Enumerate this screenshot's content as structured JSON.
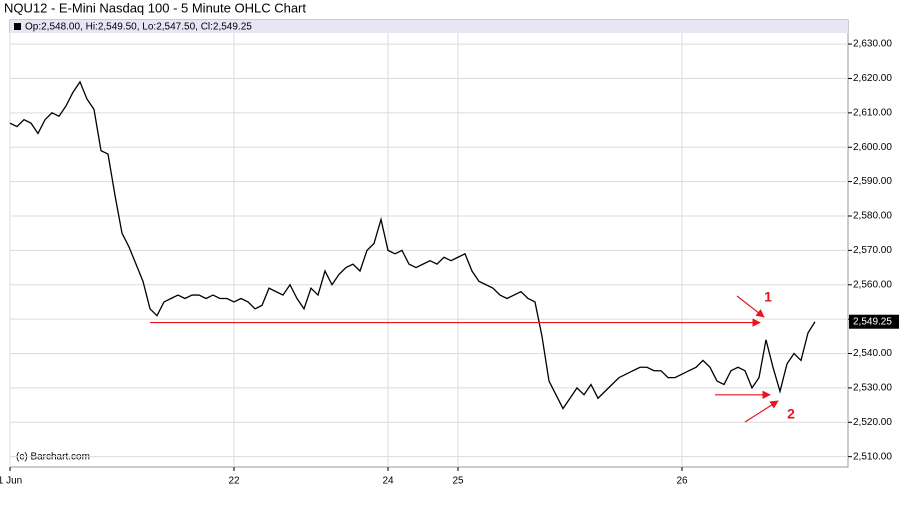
{
  "chart_data": {
    "type": "line",
    "title": "NQU12 - E-Mini Nasdaq 100 - 5 Minute OHLC Chart",
    "subtitle": "Op:2,548.00, Hi:2,549.50, Lo:2,547.50, Cl:2,549.25",
    "watermark": "(c) Barchart.com",
    "color": "#000000",
    "categories": [
      "1 Jun",
      null,
      null,
      null,
      null,
      null,
      null,
      null,
      null,
      null,
      null,
      null,
      null,
      null,
      null,
      null,
      null,
      null,
      null,
      null,
      null,
      null,
      null,
      null,
      null,
      null,
      null,
      null,
      null,
      null,
      null,
      null,
      "22",
      null,
      null,
      null,
      null,
      null,
      null,
      null,
      null,
      null,
      null,
      null,
      null,
      null,
      null,
      null,
      null,
      null,
      null,
      null,
      null,
      null,
      "24",
      null,
      null,
      null,
      null,
      null,
      null,
      null,
      null,
      null,
      "25",
      null,
      null,
      null,
      null,
      null,
      null,
      null,
      null,
      null,
      null,
      null,
      null,
      null,
      null,
      null,
      null,
      null,
      null,
      null,
      null,
      null,
      null,
      null,
      null,
      null,
      null,
      null,
      null,
      null,
      null,
      null,
      "26",
      null,
      null,
      null,
      null,
      null,
      null,
      null,
      null,
      null,
      null,
      null,
      null,
      null,
      null,
      null,
      null,
      null,
      null,
      null
    ],
    "values": [
      2607,
      2606,
      2608,
      2607,
      2604,
      2608,
      2610,
      2609,
      2612,
      2616,
      2619,
      2614,
      2611,
      2599,
      2598,
      2586,
      2575,
      2571,
      2566,
      2561,
      2553,
      2551,
      2555,
      2556,
      2557,
      2556,
      2557,
      2557,
      2556,
      2557,
      2556,
      2556,
      2555,
      2556,
      2555,
      2553,
      2554,
      2559,
      2558,
      2557,
      2560,
      2556,
      2553,
      2559,
      2557,
      2564,
      2560,
      2563,
      2565,
      2566,
      2564,
      2570,
      2572,
      2579,
      2570,
      2569,
      2570,
      2566,
      2565,
      2566,
      2567,
      2566,
      2568,
      2567,
      2568,
      2569,
      2564,
      2561,
      2560,
      2559,
      2557,
      2556,
      2557,
      2558,
      2556,
      2555,
      2545,
      2532,
      2528,
      2524,
      2527,
      2530,
      2528,
      2531,
      2527,
      2529,
      2531,
      2533,
      2534,
      2535,
      2536,
      2536,
      2535,
      2535,
      2533,
      2533,
      2534,
      2535,
      2536,
      2538,
      2536,
      2532,
      2531,
      2535,
      2536,
      2535,
      2530,
      2533,
      2544,
      2536,
      2529,
      2537,
      2540,
      2538,
      2546,
      2549.25
    ],
    "last_price": {
      "value": 2549.25,
      "label": "2,549.25"
    },
    "ylim": [
      2507,
      2637
    ],
    "yticks": [
      {
        "value": 2510,
        "label": "2,510.00"
      },
      {
        "value": 2520,
        "label": "2,520.00"
      },
      {
        "value": 2530,
        "label": "2,530.00"
      },
      {
        "value": 2540,
        "label": "2,540.00"
      },
      {
        "value": 2550,
        "label": "2,550.00"
      },
      {
        "value": 2560,
        "label": "2,560.00"
      },
      {
        "value": 2570,
        "label": "2,570.00"
      },
      {
        "value": 2580,
        "label": "2,580.00"
      },
      {
        "value": 2590,
        "label": "2,590.00"
      },
      {
        "value": 2600,
        "label": "2,600.00"
      },
      {
        "value": 2610,
        "label": "2,610.00"
      },
      {
        "value": 2620,
        "label": "2,620.00"
      },
      {
        "value": 2630,
        "label": "2,630.00"
      }
    ],
    "grid": true,
    "reference_lines": [
      2549,
      2528
    ],
    "annotations": [
      "1",
      "2"
    ],
    "annotation_color": "#e8141e"
  }
}
